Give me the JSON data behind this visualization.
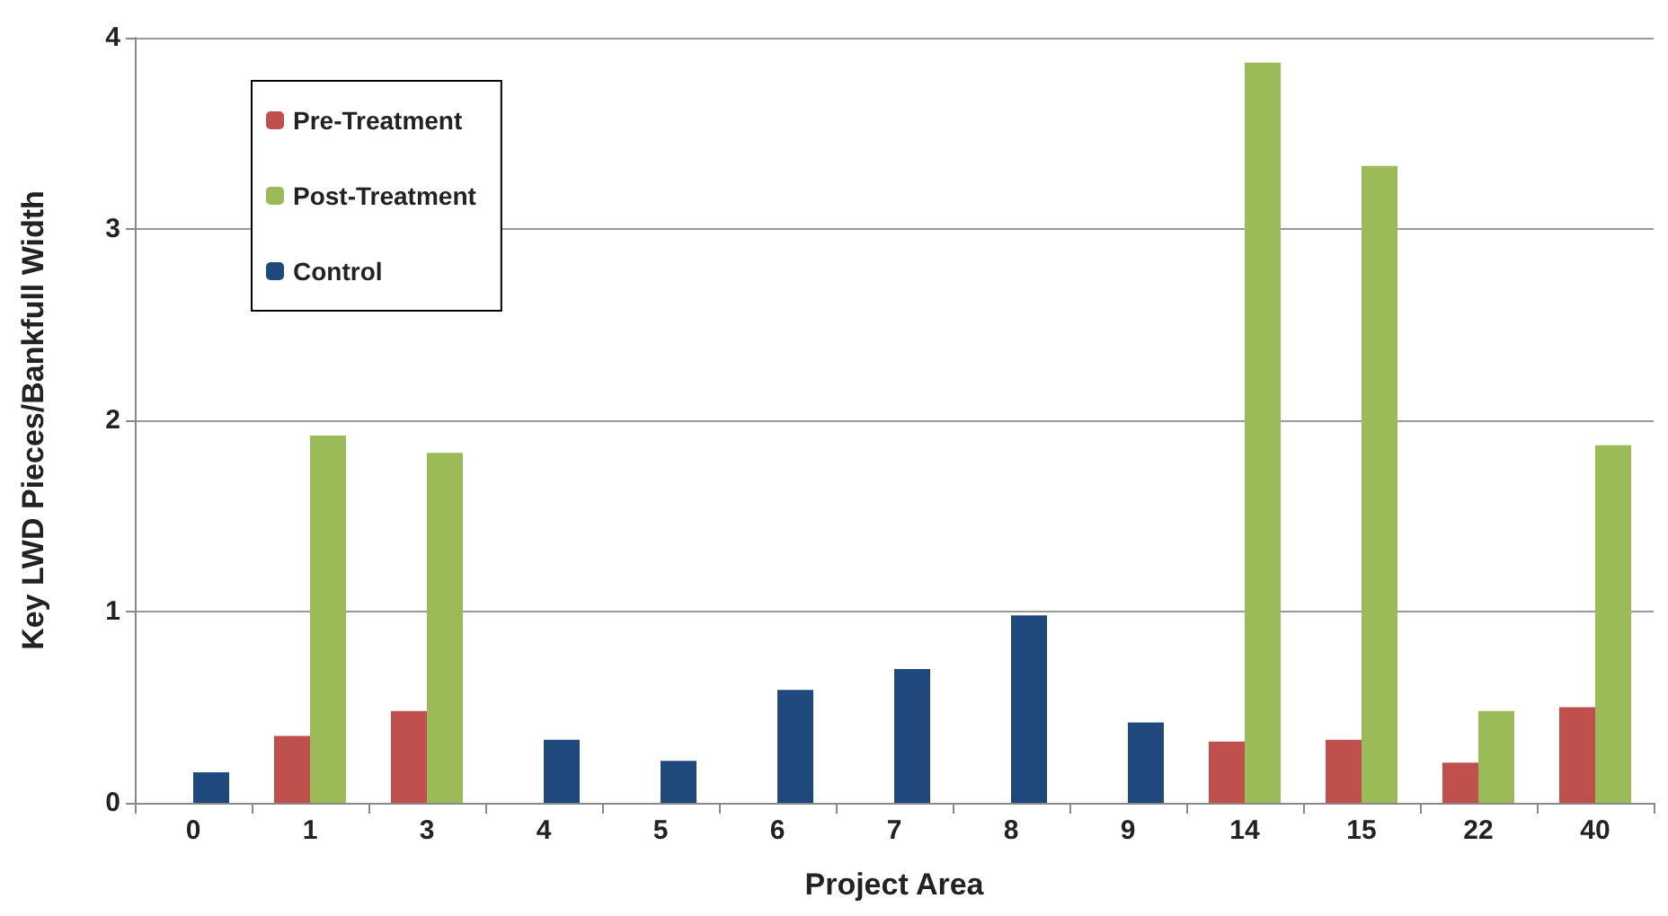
{
  "chart_data": {
    "type": "bar",
    "xlabel": "Project Area",
    "ylabel": "Key LWD Pieces/Bankfull Width",
    "categories": [
      "0",
      "1",
      "3",
      "4",
      "5",
      "6",
      "7",
      "8",
      "9",
      "14",
      "15",
      "22",
      "40"
    ],
    "series": [
      {
        "name": "Pre-Treatment",
        "color": "#c0504d",
        "values": [
          null,
          0.35,
          0.48,
          null,
          null,
          null,
          null,
          null,
          null,
          0.32,
          0.33,
          0.21,
          0.5
        ]
      },
      {
        "name": "Post-Treatment",
        "color": "#9bbb59",
        "values": [
          null,
          1.92,
          1.83,
          null,
          null,
          null,
          null,
          null,
          null,
          3.87,
          3.33,
          0.48,
          1.87
        ]
      },
      {
        "name": "Control",
        "color": "#1f497d",
        "values": [
          0.16,
          null,
          null,
          0.33,
          0.22,
          0.59,
          0.7,
          0.98,
          0.42,
          null,
          null,
          null,
          null
        ]
      }
    ],
    "ylim": [
      0,
      4
    ],
    "yticks": [
      0,
      1,
      2,
      3,
      4
    ],
    "grid": "y",
    "legend": "top left"
  }
}
